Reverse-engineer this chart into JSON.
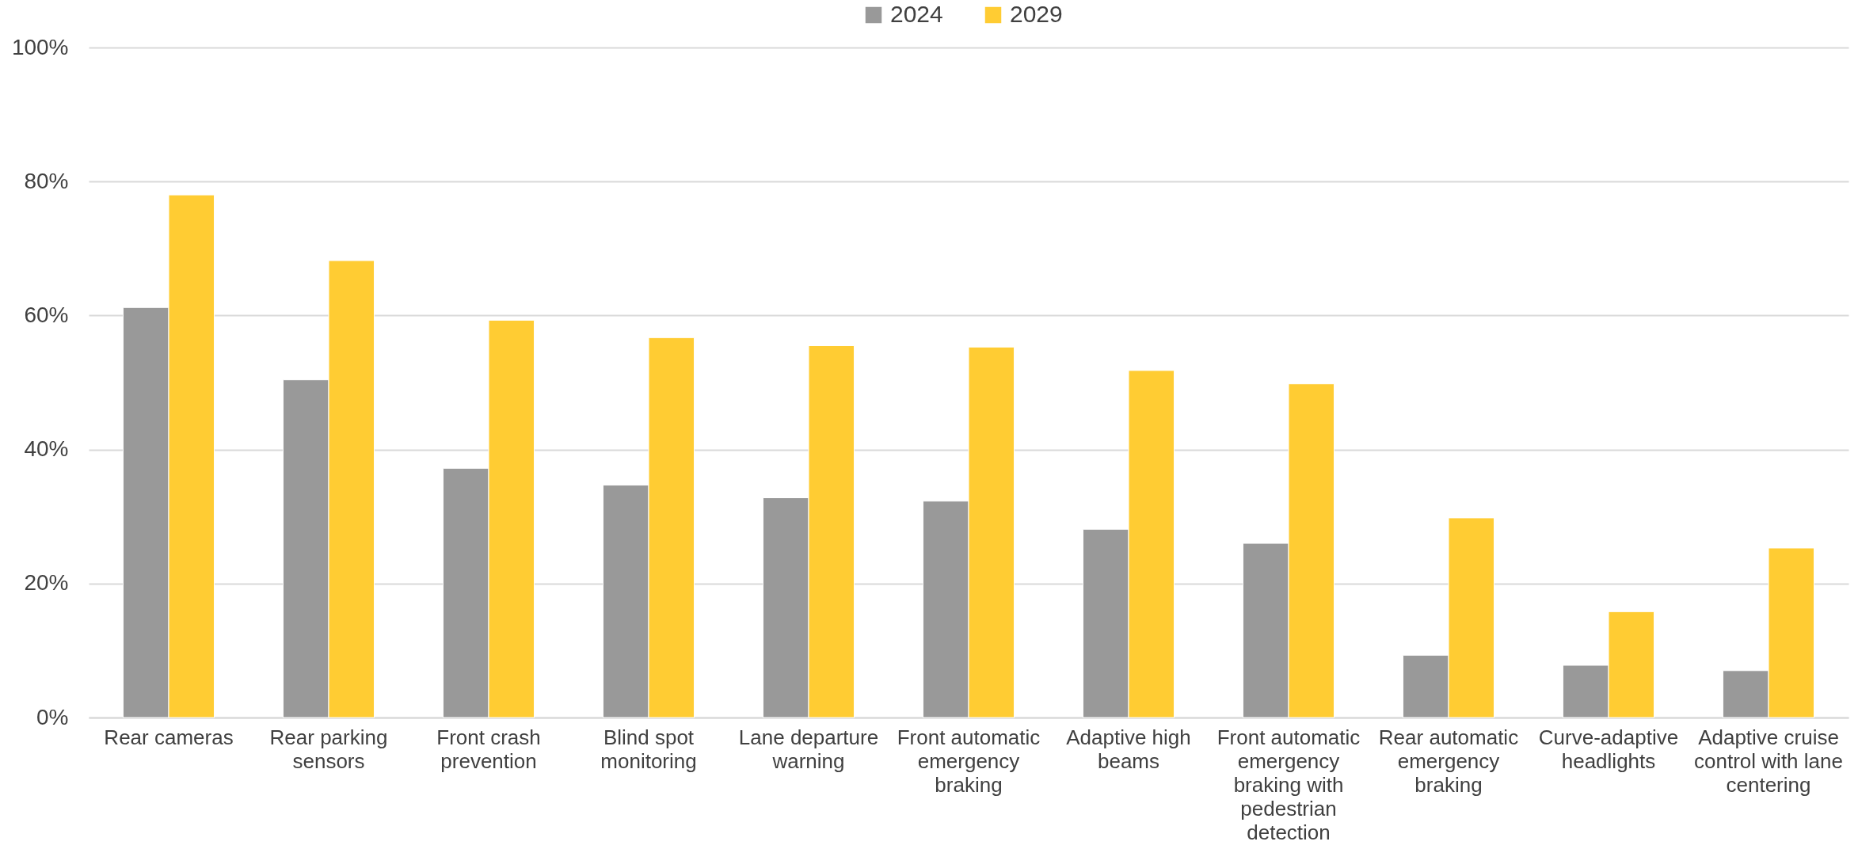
{
  "chart_data": {
    "type": "bar",
    "categories": [
      "Rear cameras",
      "Rear parking sensors",
      "Front crash prevention",
      "Blind spot monitoring",
      "Lane departure warning",
      "Front automatic emergency braking",
      "Adaptive high beams",
      "Front automatic emergency braking with pedestrian detection",
      "Rear automatic emergency braking",
      "Curve-adaptive headlights",
      "Adaptive cruise control with lane centering"
    ],
    "series": [
      {
        "name": "2024",
        "color": "#999999",
        "values": [
          61.2,
          50.4,
          37.2,
          34.7,
          32.8,
          32.3,
          28.1,
          26.0,
          9.3,
          7.8,
          7.0
        ]
      },
      {
        "name": "2029",
        "color": "#ffcc33",
        "values": [
          78.0,
          68.2,
          59.3,
          56.7,
          55.5,
          55.3,
          51.8,
          49.8,
          29.8,
          15.8,
          25.3
        ]
      }
    ],
    "ylim": [
      0,
      100
    ],
    "yticks": [
      {
        "value": 0,
        "label": "0%"
      },
      {
        "value": 20,
        "label": "20%"
      },
      {
        "value": 40,
        "label": "40%"
      },
      {
        "value": 60,
        "label": "60%"
      },
      {
        "value": 80,
        "label": "80%"
      },
      {
        "value": 100,
        "label": "100%"
      }
    ],
    "grid": "y",
    "legend": "top"
  }
}
